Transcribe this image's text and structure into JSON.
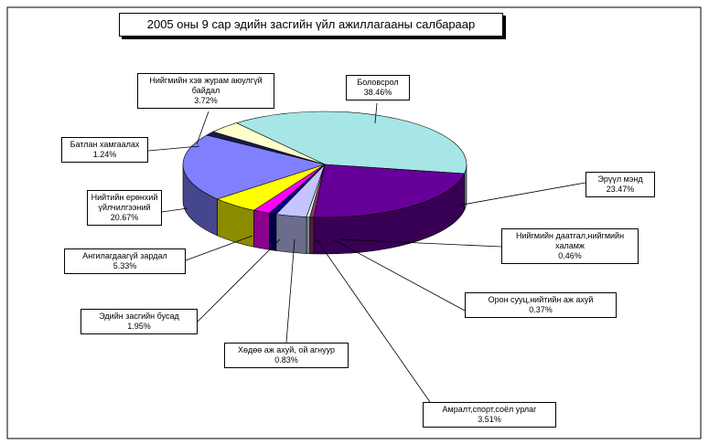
{
  "chart_data": {
    "type": "pie3d",
    "title": "2005 оны 9 сар эдийн засгийн үйл ажиллагааны салбараар",
    "categories": [
      "Боловсрол",
      "Эрүүл мэнд",
      "Нийгмийн даатгал,нийгмийн халамж",
      "Орон сууц,нийтийн аж ахуй",
      "Амралт,спорт,соёл урлаг",
      "Хөдөө аж ахуй, ой агнуур",
      "Эдийн засгийн бусад",
      "Ангилагдаагүй зардал",
      "Нийтийн ерөнхий үйлчилгээний",
      "Батлан хамгаалах",
      "Нийгмийн хэв журам аюулгүй байдал"
    ],
    "values": [
      38.46,
      23.47,
      0.46,
      0.37,
      3.51,
      0.83,
      1.95,
      5.33,
      20.67,
      1.24,
      3.72
    ],
    "value_labels": [
      "38.46%",
      "23.47%",
      "0.46%",
      "0.37%",
      "3.51%",
      "0.83%",
      "1.95%",
      "5.33%",
      "20.67%",
      "1.24%",
      "3.72%"
    ],
    "colors": [
      "#a6e6e6",
      "#660099",
      "#993366",
      "#ccffff",
      "#c4c4ff",
      "#000080",
      "#ff00ff",
      "#ffff00",
      "#8080ff",
      "#1a1a4d",
      "#ffffcc"
    ]
  }
}
